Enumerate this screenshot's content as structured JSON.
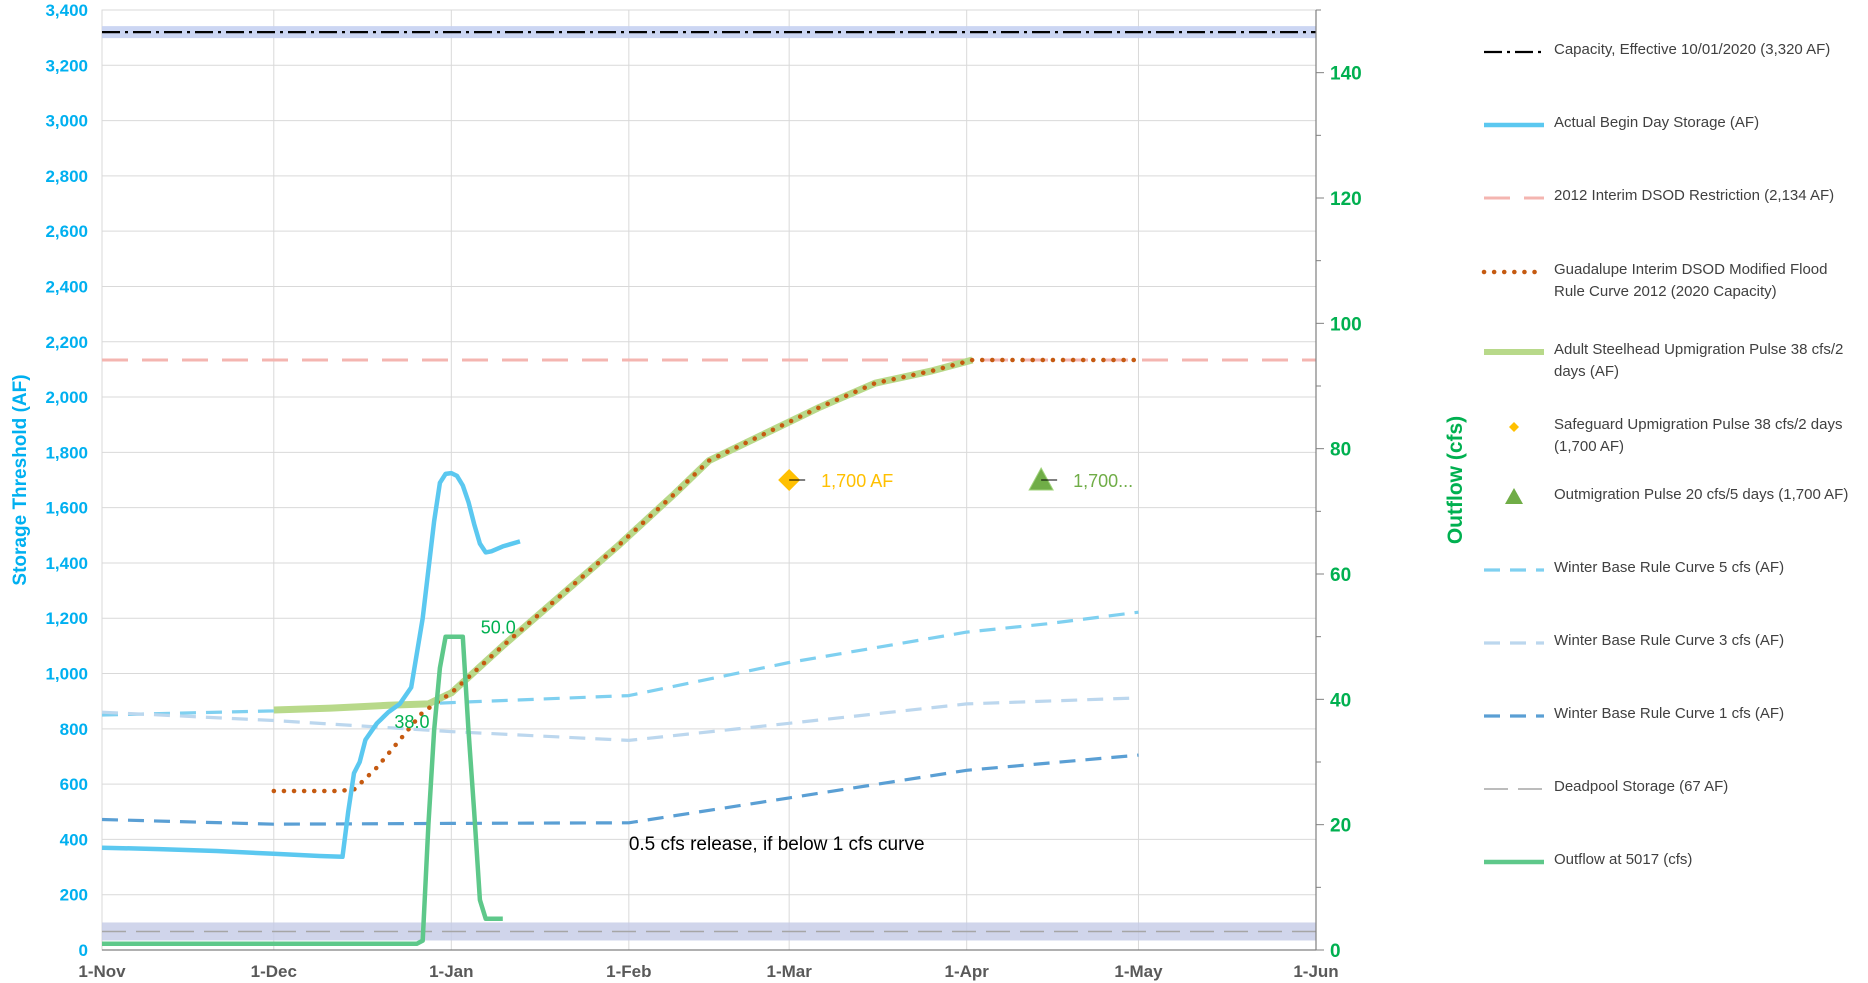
{
  "chart_data": {
    "type": "line",
    "ylabel": "Storage Threshold (AF)",
    "y2label": "Outflow (cfs)",
    "ylim": [
      0,
      3400
    ],
    "y2lim": [
      0,
      150
    ],
    "ytick_labels": [
      "0",
      "200",
      "400",
      "600",
      "800",
      "1,000",
      "1,200",
      "1,400",
      "1,600",
      "1,800",
      "2,000",
      "2,200",
      "2,400",
      "2,600",
      "2,800",
      "3,000",
      "3,200",
      "3,400"
    ],
    "y2tick_labels": [
      "0",
      "20",
      "40",
      "60",
      "80",
      "100",
      "120",
      "140"
    ],
    "xtick_labels": [
      "1-Nov",
      "1-Dec",
      "1-Jan",
      "1-Feb",
      "1-Mar",
      "1-Apr",
      "1-May",
      "1-Jun"
    ],
    "xtick_days": [
      0,
      30,
      61,
      92,
      120,
      151,
      181,
      212
    ],
    "xlim_days": [
      0,
      212
    ],
    "grid": true,
    "legend_position": "right",
    "colors": {
      "storage_axis": "#00b0f0",
      "outflow_axis": "#00b050",
      "capacity": "#000000",
      "actual": "#5bc8f0",
      "restriction": "#f4b5b0",
      "rule_curve": "#c55a11",
      "adult_pulse": "#b8d98a",
      "safeguard": "#ffc000",
      "outmigration": "#70ad47",
      "base5": "#7fd0f0",
      "base3": "#bcd7ee",
      "base1": "#5a9fd4",
      "deadpool": "#a6a6a6",
      "outflow": "#5ec88a"
    },
    "series": [
      {
        "key": "capacity",
        "name": "Capacity, Effective 10/01/2020 (3,320 AF)",
        "axis": "left",
        "style": "dashdot",
        "points": [
          [
            0,
            3320
          ],
          [
            212,
            3320
          ]
        ]
      },
      {
        "key": "actual",
        "name": "Actual Begin Day Storage (AF)",
        "axis": "left",
        "style": "solid",
        "points": [
          [
            0,
            370
          ],
          [
            10,
            365
          ],
          [
            20,
            358
          ],
          [
            30,
            348
          ],
          [
            38,
            340
          ],
          [
            42,
            337
          ],
          [
            43,
            500
          ],
          [
            44,
            640
          ],
          [
            45,
            680
          ],
          [
            46,
            760
          ],
          [
            48,
            820
          ],
          [
            50,
            860
          ],
          [
            52,
            890
          ],
          [
            54,
            950
          ],
          [
            56,
            1200
          ],
          [
            58,
            1550
          ],
          [
            59,
            1690
          ],
          [
            60,
            1722
          ],
          [
            61,
            1725
          ],
          [
            62,
            1715
          ],
          [
            63,
            1680
          ],
          [
            64,
            1620
          ],
          [
            65,
            1540
          ],
          [
            66,
            1470
          ],
          [
            67,
            1438
          ],
          [
            68,
            1442
          ],
          [
            70,
            1460
          ],
          [
            73,
            1478
          ]
        ]
      },
      {
        "key": "restriction",
        "name": "2012 Interim DSOD Restriction (2,134 AF)",
        "axis": "left",
        "style": "longdash",
        "points": [
          [
            0,
            2134
          ],
          [
            212,
            2134
          ]
        ]
      },
      {
        "key": "rule_curve",
        "name": "Guadalupe Interim DSOD Modified Flood Rule Curve 2012 (2020 Capacity)",
        "axis": "left",
        "style": "dotted",
        "points": [
          [
            30,
            575
          ],
          [
            41,
            575
          ],
          [
            44,
            580
          ],
          [
            48,
            660
          ],
          [
            52,
            760
          ],
          [
            56,
            860
          ],
          [
            61,
            930
          ],
          [
            70,
            1100
          ],
          [
            80,
            1280
          ],
          [
            90,
            1460
          ],
          [
            100,
            1650
          ],
          [
            106,
            1770
          ],
          [
            115,
            1860
          ],
          [
            125,
            1960
          ],
          [
            135,
            2050
          ],
          [
            145,
            2095
          ],
          [
            152,
            2134
          ],
          [
            181,
            2134
          ]
        ]
      },
      {
        "key": "adult_pulse",
        "name": "Adult Steelhead Upmigration Pulse 38 cfs/2 days (AF)",
        "axis": "left",
        "style": "thick",
        "points": [
          [
            30,
            868
          ],
          [
            40,
            875
          ],
          [
            50,
            885
          ],
          [
            57,
            890
          ],
          [
            61,
            930
          ],
          [
            70,
            1100
          ],
          [
            80,
            1280
          ],
          [
            90,
            1460
          ],
          [
            100,
            1650
          ],
          [
            106,
            1770
          ],
          [
            115,
            1860
          ],
          [
            125,
            1960
          ],
          [
            135,
            2050
          ],
          [
            145,
            2095
          ],
          [
            152,
            2134
          ]
        ]
      },
      {
        "key": "safeguard",
        "name": "Safeguard Upmigration Pulse 38 cfs/2 days (1,700 AF)",
        "axis": "left",
        "style": "marker-diamond",
        "points": [
          [
            120,
            1700
          ]
        ],
        "point_label": "1,700 AF"
      },
      {
        "key": "outmigration",
        "name": "Outmigration Pulse 20 cfs/5 days (1,700 AF)",
        "axis": "left",
        "style": "marker-triangle",
        "points": [
          [
            164,
            1700
          ]
        ],
        "point_label": "1,700..."
      },
      {
        "key": "base5",
        "name": "Winter Base Rule Curve 5 cfs (AF)",
        "axis": "left",
        "style": "dash",
        "points": [
          [
            0,
            850
          ],
          [
            30,
            865
          ],
          [
            61,
            895
          ],
          [
            92,
            920
          ],
          [
            120,
            1040
          ],
          [
            151,
            1150
          ],
          [
            165,
            1180
          ],
          [
            181,
            1222
          ]
        ]
      },
      {
        "key": "base3",
        "name": "Winter Base Rule Curve 3 cfs (AF)",
        "axis": "left",
        "style": "dash",
        "points": [
          [
            0,
            860
          ],
          [
            30,
            830
          ],
          [
            61,
            790
          ],
          [
            92,
            758
          ],
          [
            120,
            820
          ],
          [
            151,
            890
          ],
          [
            181,
            912
          ]
        ]
      },
      {
        "key": "base1",
        "name": "Winter Base Rule Curve 1 cfs (AF)",
        "axis": "left",
        "style": "dash",
        "points": [
          [
            0,
            472
          ],
          [
            30,
            455
          ],
          [
            61,
            458
          ],
          [
            92,
            460
          ],
          [
            120,
            550
          ],
          [
            151,
            650
          ],
          [
            181,
            705
          ]
        ]
      },
      {
        "key": "deadpool",
        "name": "Deadpool Storage (67 AF)",
        "axis": "left",
        "style": "longdash",
        "points": [
          [
            0,
            67
          ],
          [
            212,
            67
          ]
        ]
      },
      {
        "key": "outflow",
        "name": "Outflow at 5017 (cfs)",
        "axis": "right",
        "style": "solid",
        "points": [
          [
            0,
            1
          ],
          [
            55,
            1
          ],
          [
            56,
            1.5
          ],
          [
            57,
            20
          ],
          [
            58,
            35
          ],
          [
            59,
            45
          ],
          [
            60,
            50
          ],
          [
            62,
            50
          ],
          [
            63,
            50
          ],
          [
            64,
            35
          ],
          [
            65,
            22
          ],
          [
            66,
            8
          ],
          [
            67,
            5
          ],
          [
            69,
            5
          ],
          [
            70,
            5
          ]
        ]
      }
    ],
    "annotations": [
      {
        "text": "50.0",
        "x": 63,
        "y_axis": "right",
        "y": 50,
        "color": "#00b050"
      },
      {
        "text": "38.0",
        "x": 55,
        "y_axis": "right",
        "y": 38,
        "color": "#00b050"
      },
      {
        "text": "0.5 cfs release, if below 1 cfs curve",
        "x": 92,
        "y_axis": "left",
        "y": 350,
        "color": "#000000"
      }
    ]
  }
}
